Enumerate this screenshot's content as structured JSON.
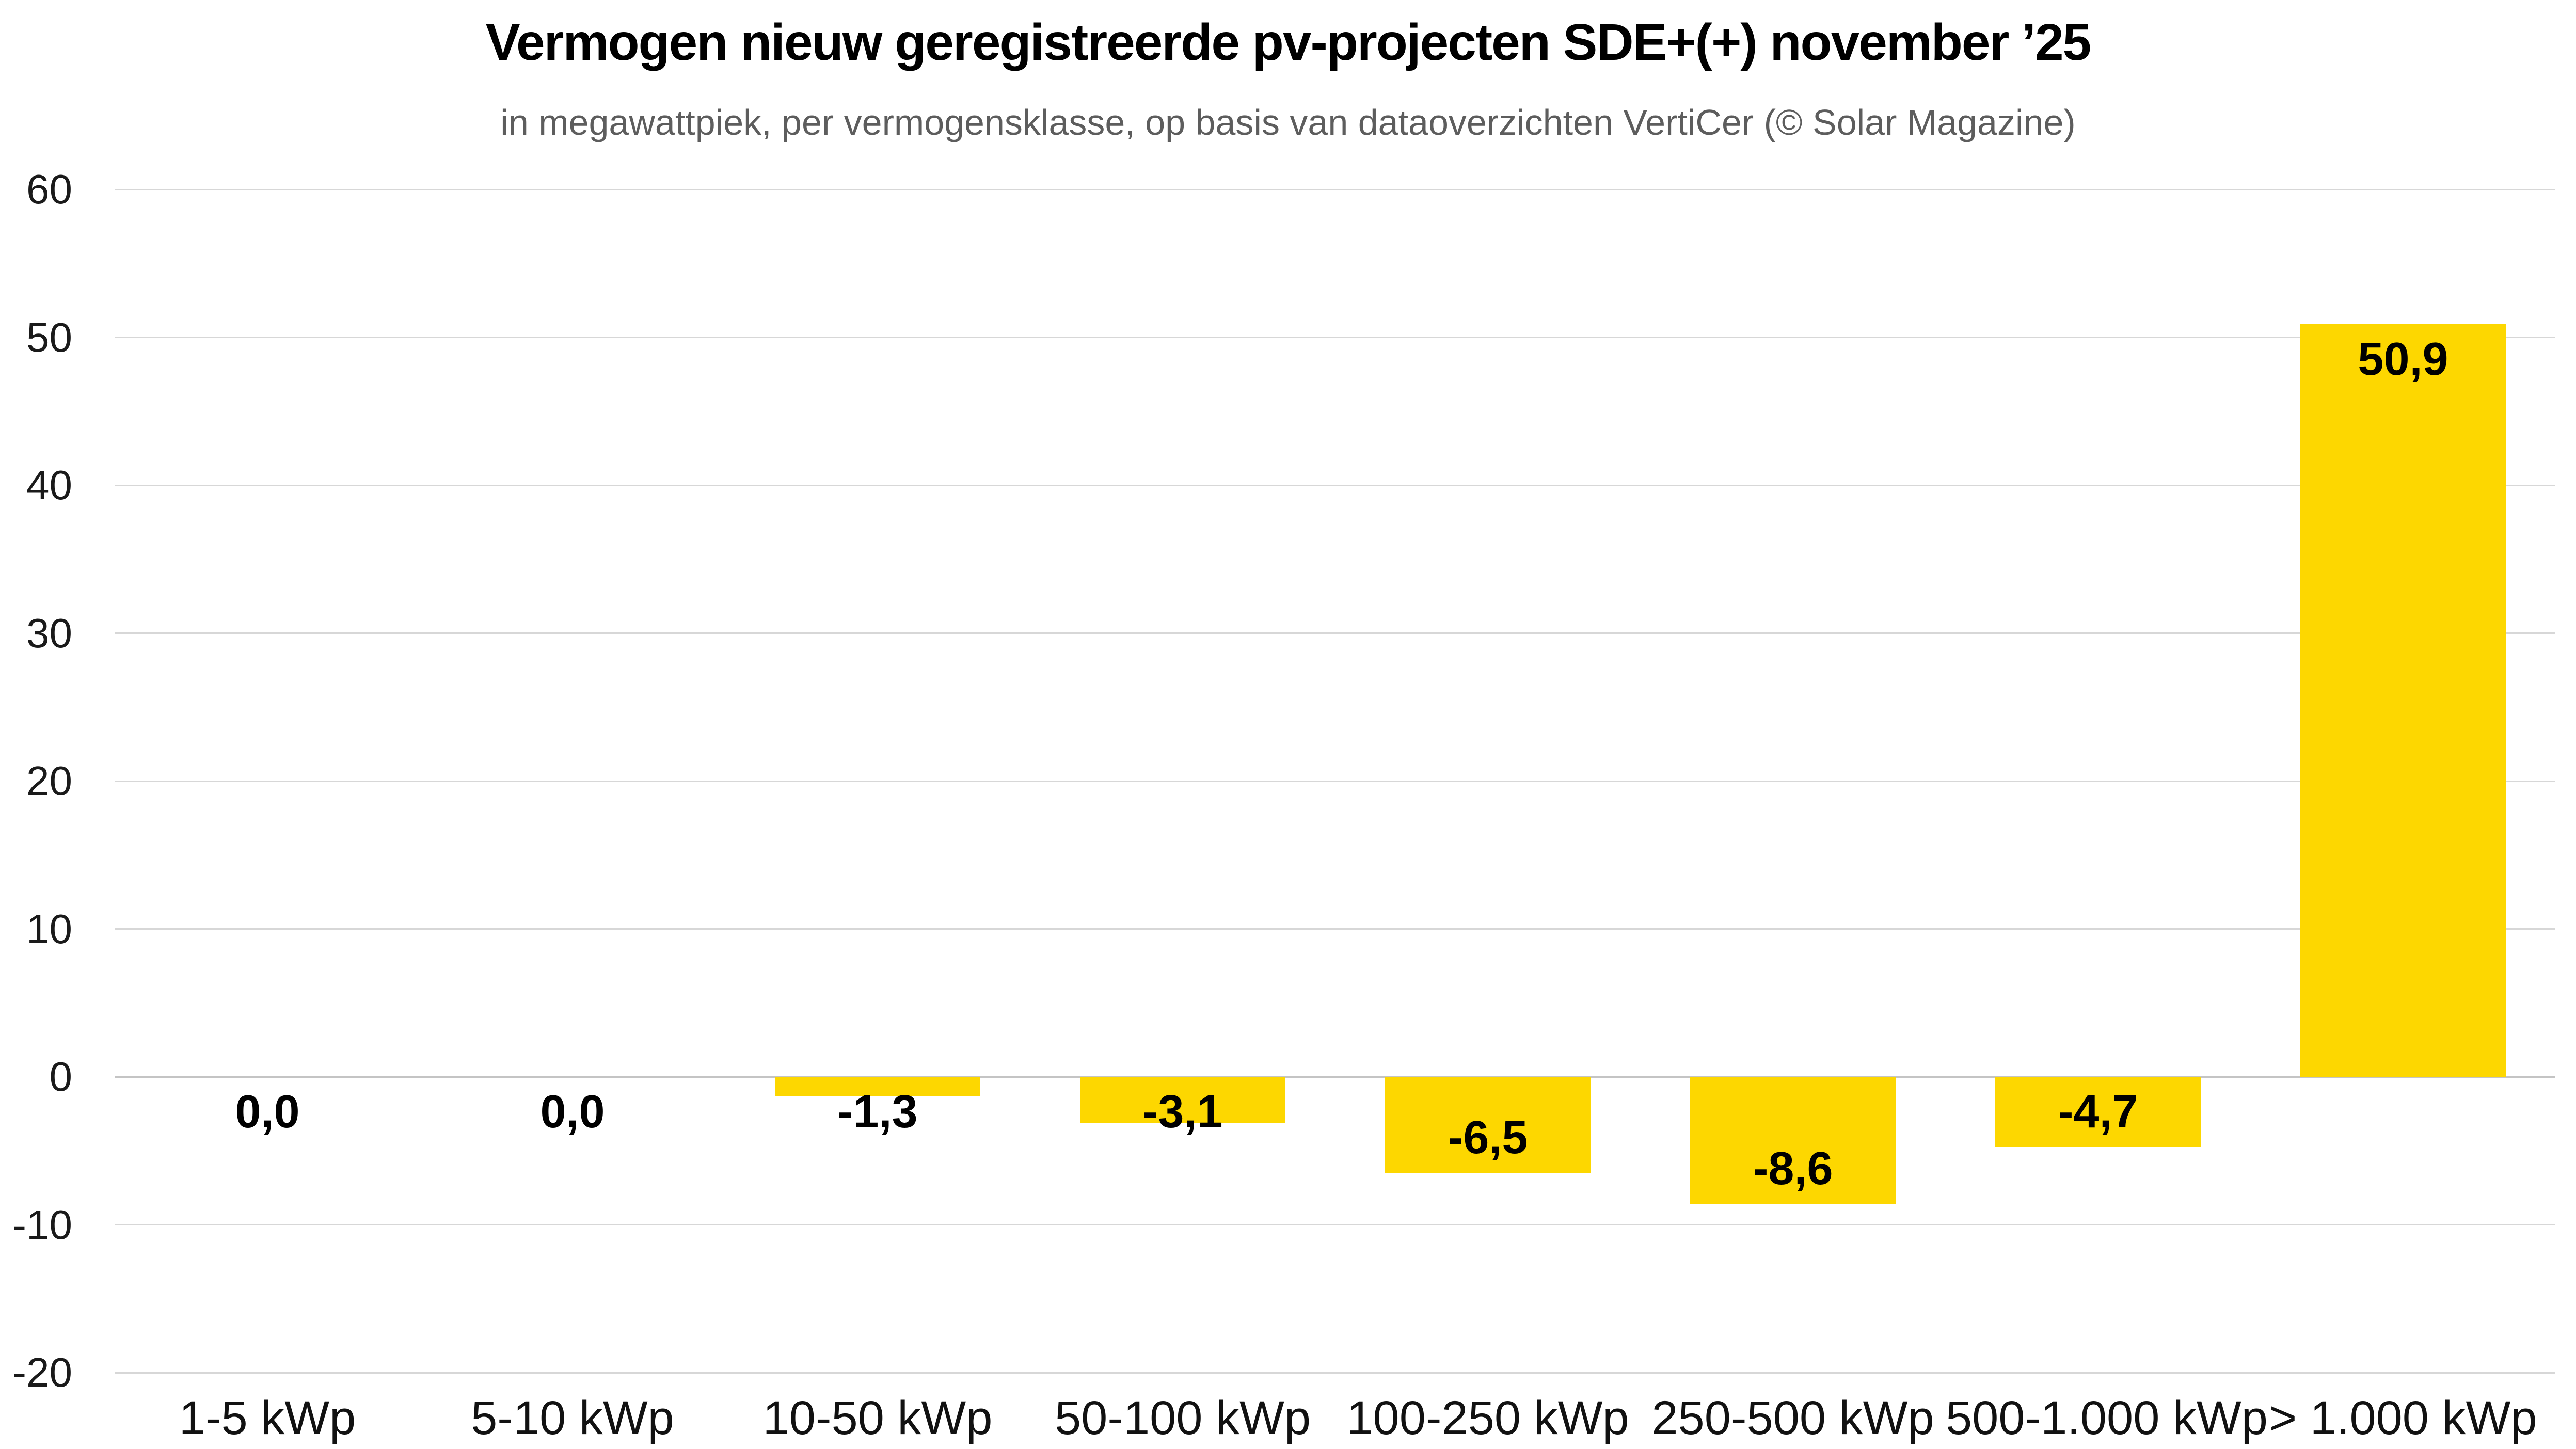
{
  "chart_data": {
    "type": "bar",
    "title": "Vermogen nieuw geregistreerde pv-projecten SDE+(+) november ’25",
    "subtitle": "in megawattpiek, per vermogensklasse, op basis van dataoverzichten VertiCer (© Solar Magazine)",
    "categories": [
      "1-5 kWp",
      "5-10 kWp",
      "10-50 kWp",
      "50-100 kWp",
      "100-250 kWp",
      "250-500 kWp",
      "500-1.000 kWp",
      "> 1.000 kWp"
    ],
    "values": [
      0.0,
      0.0,
      -1.3,
      -3.1,
      -6.5,
      -8.6,
      -4.7,
      50.9
    ],
    "value_labels": [
      "0,0",
      "0,0",
      "-1,3",
      "-3,1",
      "-6,5",
      "-8,6",
      "-4,7",
      "50,9"
    ],
    "xlabel": "",
    "ylabel": "",
    "ylim": [
      -20,
      60
    ],
    "yticks": [
      60,
      50,
      40,
      30,
      20,
      10,
      0,
      -10,
      -20
    ],
    "grid": "horizontal",
    "legend": "none",
    "colors": {
      "bar": "#FDD700",
      "title": "#000000",
      "subtitle": "#5d5d5d",
      "tick_label": "#1a1a1a",
      "gridline": "#d7d7d7",
      "zero_line": "#c4c4c4",
      "background": "#ffffff"
    }
  }
}
